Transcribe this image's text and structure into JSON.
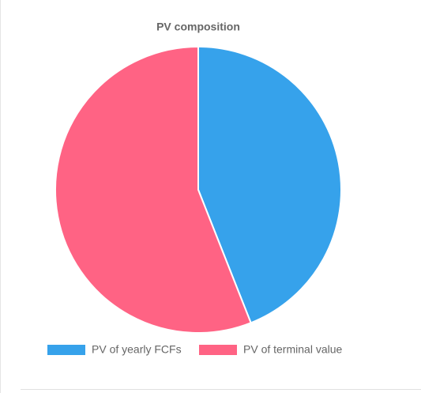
{
  "chart_data": {
    "type": "pie",
    "title": "PV composition",
    "categories": [
      "PV of yearly FCFs",
      "PV of terminal value"
    ],
    "values": [
      44,
      56
    ],
    "colors": [
      "#36a2eb",
      "#ff6384"
    ]
  }
}
